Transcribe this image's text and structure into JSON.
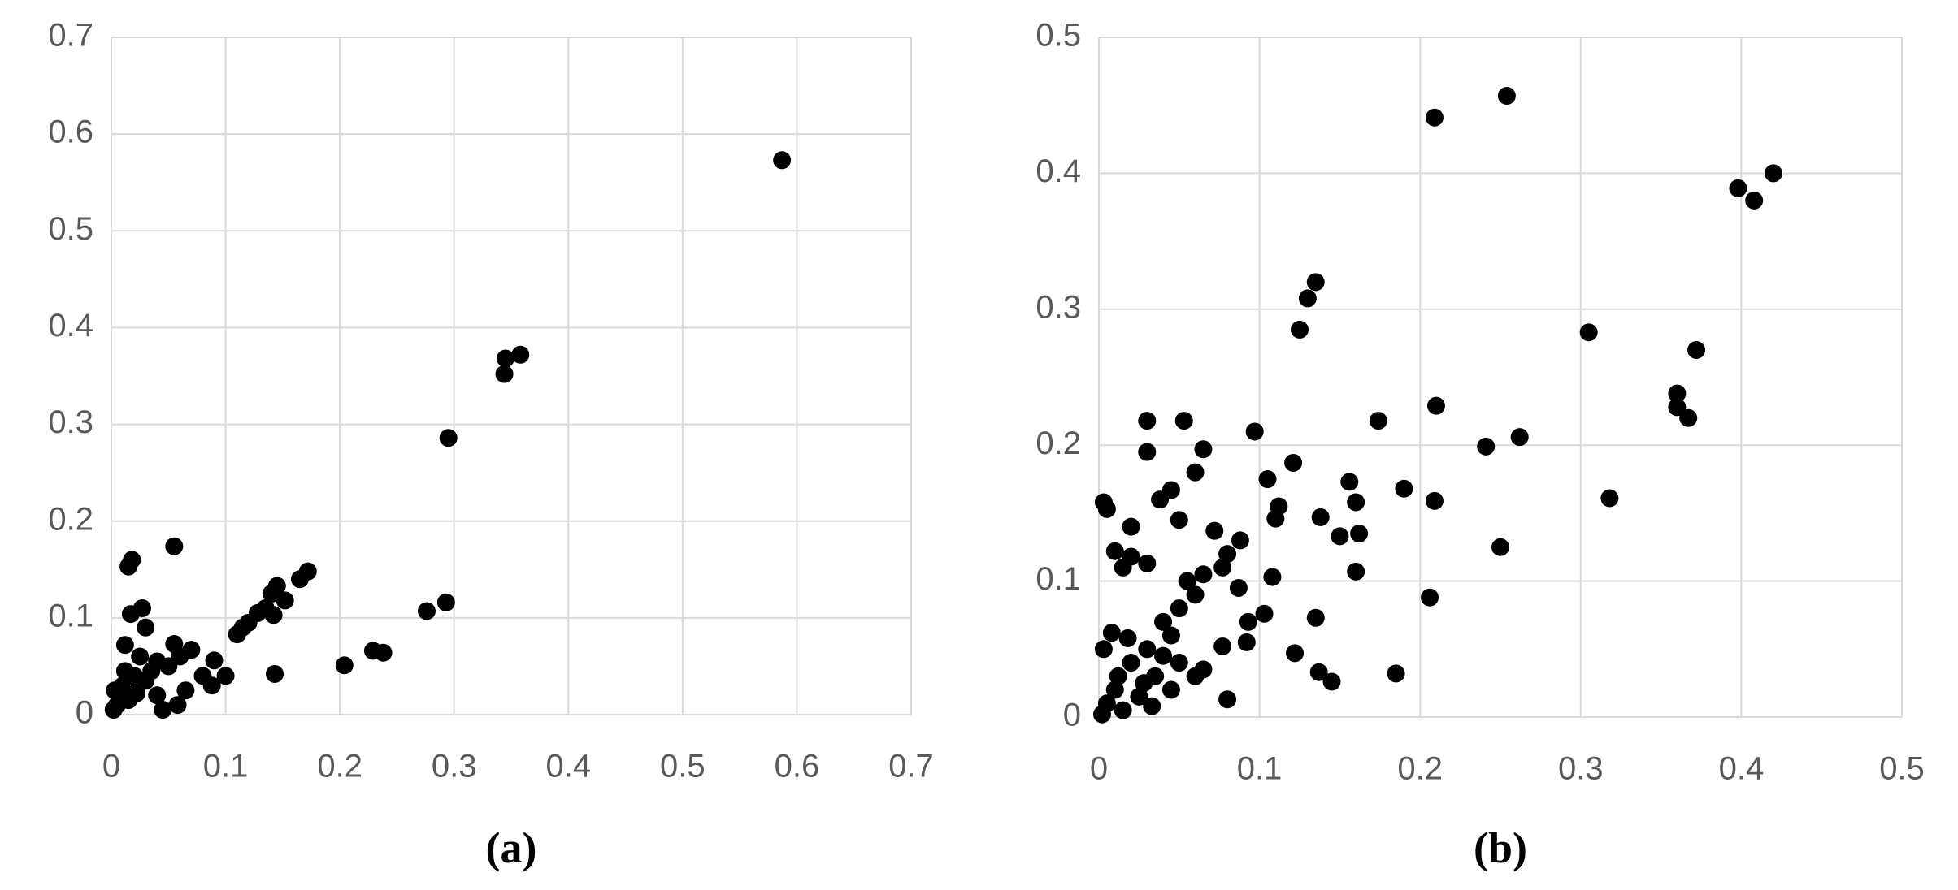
{
  "chart_data": [
    {
      "type": "scatter",
      "caption": "(a)",
      "color": "#000000",
      "grid": true,
      "xlim": [
        0,
        0.7
      ],
      "ylim": [
        0,
        0.7
      ],
      "xticks": [
        0,
        0.1,
        0.2,
        0.3,
        0.4,
        0.5,
        0.6,
        0.7
      ],
      "yticks": [
        0,
        0.1,
        0.2,
        0.3,
        0.4,
        0.5,
        0.6,
        0.7
      ],
      "x": [
        0.587,
        0.358,
        0.345,
        0.344,
        0.295,
        0.293,
        0.276,
        0.238,
        0.229,
        0.204,
        0.172,
        0.165,
        0.152,
        0.145,
        0.14,
        0.142,
        0.143,
        0.135,
        0.128,
        0.12,
        0.115,
        0.11,
        0.055,
        0.018,
        0.015,
        0.017,
        0.027,
        0.03,
        0.012,
        0.07,
        0.055,
        0.06,
        0.05,
        0.09,
        0.1,
        0.08,
        0.088,
        0.065,
        0.04,
        0.045,
        0.058,
        0.03,
        0.025,
        0.02,
        0.01,
        0.005,
        0.002,
        0.008,
        0.015,
        0.035,
        0.012,
        0.022,
        0.04,
        0.003
      ],
      "values": [
        0.573,
        0.372,
        0.368,
        0.352,
        0.286,
        0.116,
        0.107,
        0.064,
        0.066,
        0.051,
        0.148,
        0.14,
        0.118,
        0.133,
        0.125,
        0.103,
        0.042,
        0.11,
        0.105,
        0.095,
        0.09,
        0.083,
        0.174,
        0.16,
        0.153,
        0.104,
        0.11,
        0.09,
        0.072,
        0.067,
        0.073,
        0.06,
        0.05,
        0.056,
        0.04,
        0.04,
        0.03,
        0.025,
        0.02,
        0.005,
        0.01,
        0.035,
        0.06,
        0.04,
        0.03,
        0.01,
        0.005,
        0.02,
        0.015,
        0.045,
        0.045,
        0.022,
        0.055,
        0.025
      ]
    },
    {
      "type": "scatter",
      "caption": "(b)",
      "color": "#000000",
      "grid": true,
      "xlim": [
        0,
        0.5
      ],
      "ylim": [
        0,
        0.5
      ],
      "xticks": [
        0,
        0.1,
        0.2,
        0.3,
        0.4,
        0.5
      ],
      "yticks": [
        0,
        0.1,
        0.2,
        0.3,
        0.4,
        0.5
      ],
      "x": [
        0.254,
        0.209,
        0.42,
        0.398,
        0.408,
        0.135,
        0.13,
        0.125,
        0.305,
        0.372,
        0.36,
        0.36,
        0.367,
        0.21,
        0.174,
        0.262,
        0.241,
        0.097,
        0.121,
        0.105,
        0.156,
        0.19,
        0.318,
        0.209,
        0.16,
        0.112,
        0.138,
        0.11,
        0.15,
        0.162,
        0.25,
        0.16,
        0.108,
        0.206,
        0.135,
        0.103,
        0.122,
        0.137,
        0.145,
        0.185,
        0.08,
        0.03,
        0.053,
        0.065,
        0.03,
        0.045,
        0.06,
        0.003,
        0.005,
        0.038,
        0.02,
        0.05,
        0.072,
        0.088,
        0.01,
        0.02,
        0.08,
        0.077,
        0.03,
        0.015,
        0.055,
        0.065,
        0.06,
        0.087,
        0.093,
        0.092,
        0.077,
        0.05,
        0.04,
        0.045,
        0.03,
        0.02,
        0.035,
        0.01,
        0.005,
        0.015,
        0.025,
        0.04,
        0.06,
        0.065,
        0.003,
        0.008,
        0.012,
        0.028,
        0.002,
        0.018,
        0.045,
        0.05,
        0.033
      ],
      "values": [
        0.457,
        0.441,
        0.4,
        0.389,
        0.38,
        0.32,
        0.308,
        0.285,
        0.283,
        0.27,
        0.238,
        0.228,
        0.22,
        0.229,
        0.218,
        0.206,
        0.199,
        0.21,
        0.187,
        0.175,
        0.173,
        0.168,
        0.161,
        0.159,
        0.158,
        0.155,
        0.147,
        0.146,
        0.133,
        0.135,
        0.125,
        0.107,
        0.103,
        0.088,
        0.073,
        0.076,
        0.047,
        0.033,
        0.026,
        0.032,
        0.013,
        0.218,
        0.218,
        0.197,
        0.195,
        0.167,
        0.18,
        0.158,
        0.153,
        0.16,
        0.14,
        0.145,
        0.137,
        0.13,
        0.122,
        0.118,
        0.12,
        0.11,
        0.113,
        0.11,
        0.1,
        0.105,
        0.09,
        0.095,
        0.07,
        0.055,
        0.052,
        0.08,
        0.07,
        0.06,
        0.05,
        0.04,
        0.03,
        0.02,
        0.01,
        0.005,
        0.015,
        0.045,
        0.03,
        0.035,
        0.05,
        0.062,
        0.03,
        0.025,
        0.002,
        0.058,
        0.02,
        0.04,
        0.008
      ]
    }
  ]
}
